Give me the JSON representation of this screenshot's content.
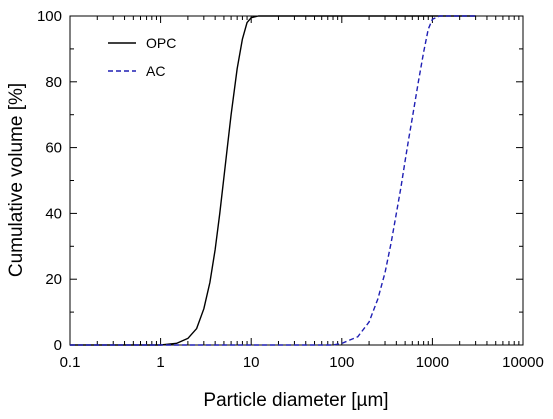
{
  "chart_data": {
    "type": "line",
    "xlabel": "Particle diameter [µm]",
    "ylabel": "Cumulative volume [%]",
    "xscale": "log",
    "xlim": [
      0.1,
      10000
    ],
    "ylim": [
      0,
      100
    ],
    "xticks": [
      "0.1",
      "1",
      "10",
      "100",
      "1000",
      "10000"
    ],
    "yticks": [
      "0",
      "20",
      "40",
      "60",
      "80",
      "100"
    ],
    "grid": false,
    "legend_position": "top-left",
    "series": [
      {
        "name": "OPC",
        "color": "#000000",
        "style": "solid",
        "x": [
          0.1,
          1.0,
          1.5,
          2.0,
          2.5,
          3.0,
          3.5,
          4.0,
          4.5,
          5.0,
          5.5,
          6.0,
          7.0,
          8.0,
          9.0,
          10.0,
          12.0,
          20.0,
          100.0,
          1000.0,
          3000.0
        ],
        "y": [
          0,
          0,
          0.5,
          2,
          5,
          11,
          19,
          29,
          40,
          51,
          61,
          70,
          84,
          93,
          98,
          99.5,
          100,
          100,
          100,
          100,
          100
        ]
      },
      {
        "name": "AC",
        "color": "#1f1fb4",
        "style": "dashed",
        "x": [
          0.1,
          80.0,
          100.0,
          150.0,
          200.0,
          250.0,
          300.0,
          350.0,
          400.0,
          450.0,
          500.0,
          550.0,
          600.0,
          700.0,
          800.0,
          900.0,
          1000.0,
          1200.0,
          3000.0
        ],
        "y": [
          0,
          0,
          0.5,
          2.5,
          7,
          14,
          22,
          31,
          40,
          48,
          56,
          63,
          69,
          80,
          89,
          96,
          99,
          100,
          100
        ]
      }
    ]
  }
}
